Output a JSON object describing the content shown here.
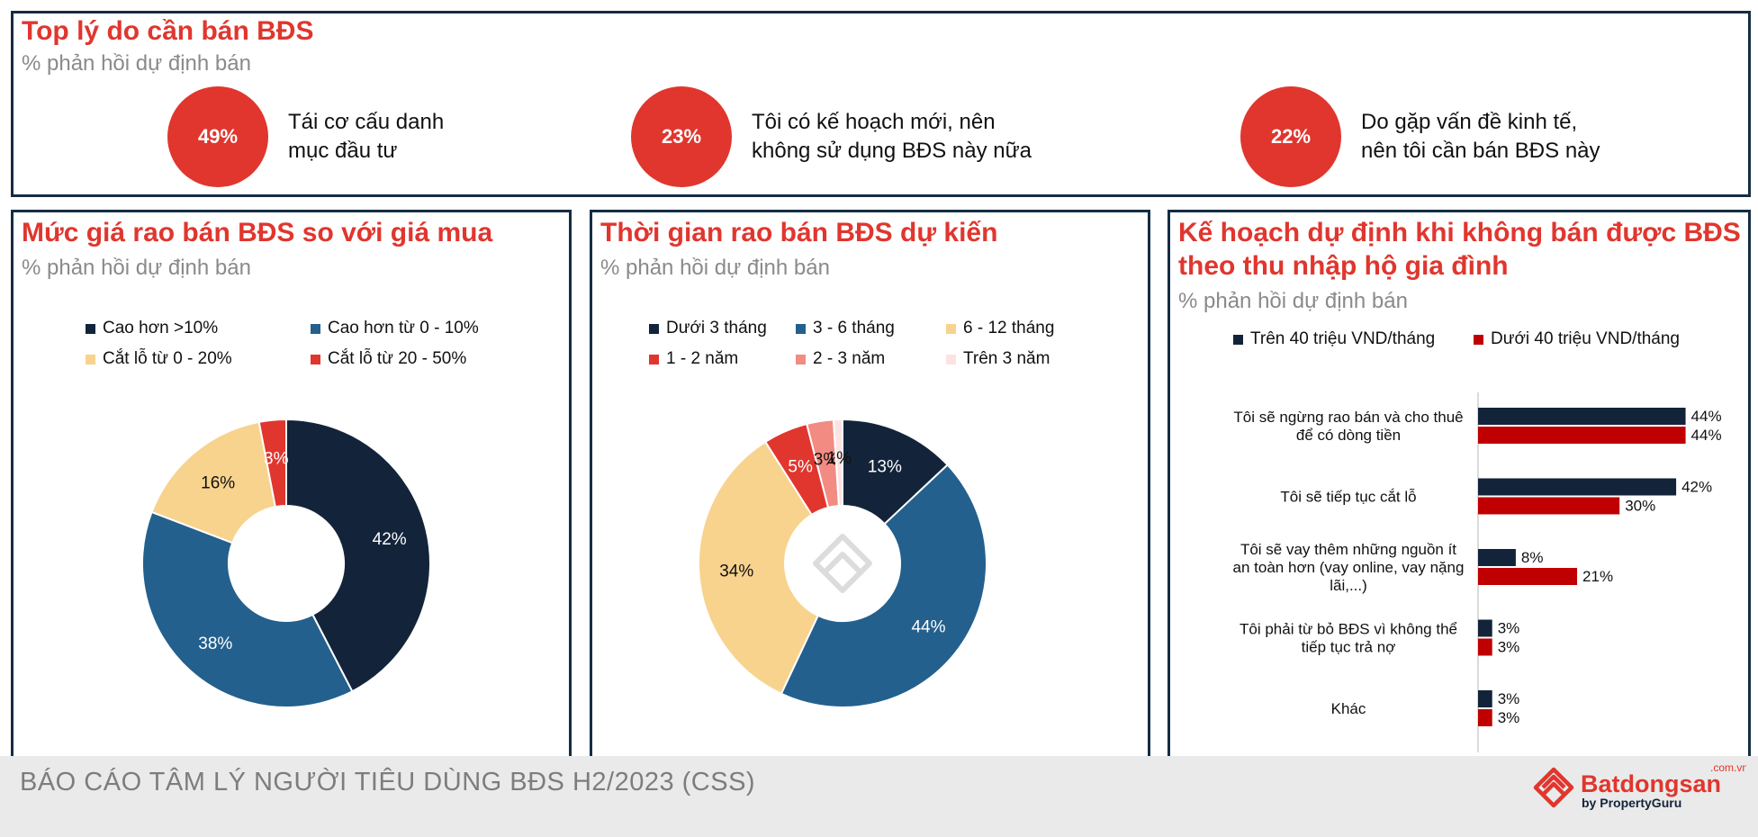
{
  "top": {
    "title": "Top lý do cần bán BĐS",
    "subtitle": "% phản hồi dự định bán",
    "reasons": [
      {
        "pct": "49%",
        "line1": "Tái cơ cấu danh",
        "line2": "mục đầu tư"
      },
      {
        "pct": "23%",
        "line1": "Tôi có kế hoạch mới, nên",
        "line2": "không sử dụng BĐS này nữa"
      },
      {
        "pct": "22%",
        "line1": "Do gặp vấn đề kinh tế,",
        "line2": "nên tôi cần bán BĐS này"
      }
    ]
  },
  "panels": {
    "price": {
      "title": "Mức giá rao bán BĐS so với giá mua",
      "subtitle": "% phản hồi dự định bán"
    },
    "time": {
      "title": "Thời gian rao bán BĐS dự kiến",
      "subtitle": "% phản hồi dự định bán"
    },
    "plan": {
      "title_line1": "Kế hoạch dự định khi không bán được BĐS",
      "title_line2": "theo thu nhập hộ gia đình",
      "subtitle": "% phản hồi dự định bán"
    }
  },
  "chart_data": [
    {
      "type": "pie",
      "donut": true,
      "title": "Mức giá rao bán BĐS so với giá mua",
      "categories": [
        "Cao hơn >10%",
        "Cao hơn từ 0 - 10%",
        "Cắt lỗ từ 0 - 20%",
        "Cắt lỗ từ 20 - 50%"
      ],
      "values": [
        42,
        38,
        16,
        3
      ],
      "labels": [
        "42%",
        "38%",
        "16%",
        "3%"
      ],
      "colors": [
        "#13243a",
        "#23608e",
        "#f8d38e",
        "#e0362e"
      ],
      "legend": "top"
    },
    {
      "type": "pie",
      "donut": true,
      "title": "Thời gian rao bán BĐS dự kiến",
      "categories": [
        "Dưới 3 tháng",
        "3 - 6 tháng",
        "6 - 12 tháng",
        "1 - 2 năm",
        "2 - 3 năm",
        "Trên 3 năm"
      ],
      "values": [
        13,
        44,
        34,
        5,
        3,
        1
      ],
      "labels": [
        "13%",
        "44%",
        "34%",
        "5%",
        "3%",
        "1%"
      ],
      "colors": [
        "#13243a",
        "#23608e",
        "#f8d38e",
        "#e0362e",
        "#f28b82",
        "#fde2e4"
      ],
      "legend": "top"
    },
    {
      "type": "bar",
      "orientation": "horizontal",
      "title": "Kế hoạch dự định khi không bán được BĐS theo thu nhập hộ gia đình",
      "categories": [
        [
          "Tôi sẽ ngừng rao bán và cho thuê",
          "để có dòng tiền"
        ],
        [
          "Tôi sẽ tiếp tục cắt lỗ"
        ],
        [
          "Tôi sẽ vay thêm những nguồn ít",
          "an toàn hơn (vay online, vay nặng",
          "lãi,...)"
        ],
        [
          "Tôi phải từ bỏ BĐS vì không thể",
          "tiếp tục trả nợ"
        ],
        [
          "Khác"
        ]
      ],
      "series": [
        {
          "name": "Trên 40 triệu VND/tháng",
          "values": [
            44,
            42,
            8,
            3,
            3
          ],
          "color": "#13243a"
        },
        {
          "name": "Dưới 40 triệu VND/tháng",
          "values": [
            44,
            30,
            21,
            3,
            3
          ],
          "color": "#c00000"
        }
      ],
      "value_suffix": "%",
      "legend": "top"
    }
  ],
  "footer": {
    "report_title": "BÁO CÁO TÂM LÝ NGƯỜI TIÊU DÙNG BĐS H2/2023 (CSS)",
    "brand": "Batdongsan",
    "brand_suffix": ".com.vn",
    "brand_by": "by PropertyGuru"
  }
}
